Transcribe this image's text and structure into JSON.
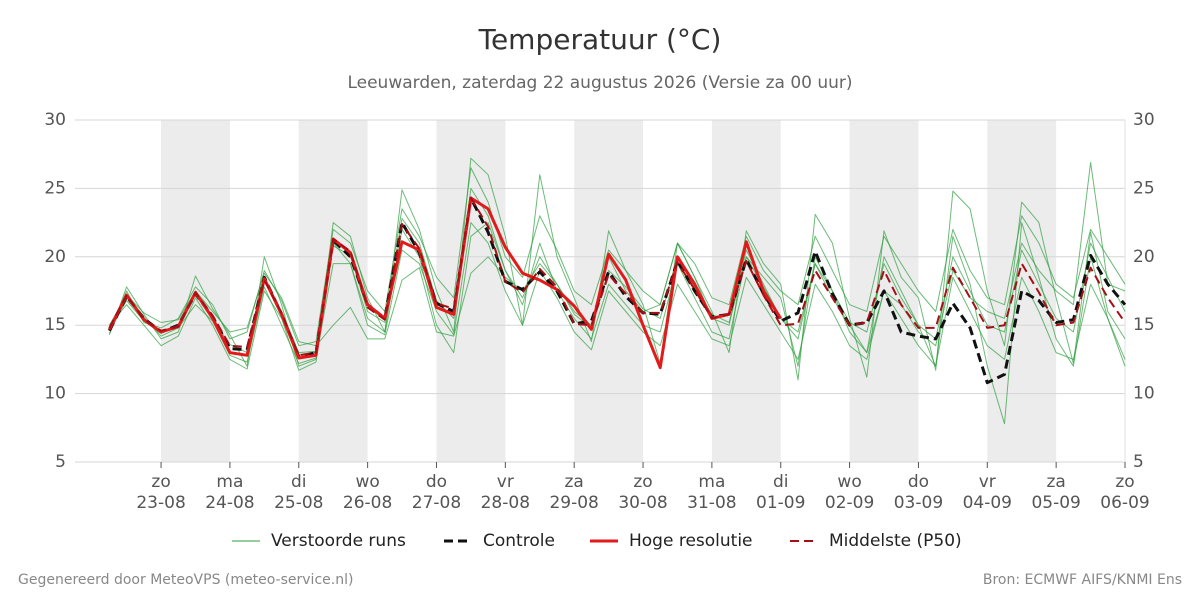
{
  "chart_data": {
    "type": "line",
    "title": "Temperatuur (°C)",
    "subtitle": "Leeuwarden, zaterdag 22 augustus 2026 (Versie za 00 uur)",
    "footer_left": "Gegenereerd door MeteoVPS (meteo-service.nl)",
    "footer_right": "Bron: ECMWF AIFS/KNMI Ens",
    "categories": [
      null,
      null,
      null,
      "23-08",
      null,
      null,
      null,
      "24-08",
      null,
      null,
      null,
      "25-08",
      null,
      null,
      null,
      "26-08",
      null,
      null,
      null,
      "27-08",
      null,
      null,
      null,
      "28-08",
      null,
      null,
      null,
      "29-08",
      null,
      null,
      null,
      "30-08",
      null,
      null,
      null,
      "31-08",
      null,
      null,
      null,
      "01-09",
      null,
      null,
      null,
      "02-09",
      null,
      null,
      null,
      "03-09",
      null,
      null,
      null,
      "04-09",
      null,
      null,
      null,
      "05-09",
      null,
      null,
      null,
      "06-09"
    ],
    "weekdays": [
      null,
      null,
      null,
      "zo",
      null,
      null,
      null,
      "ma",
      null,
      null,
      null,
      "di",
      null,
      null,
      null,
      "wo",
      null,
      null,
      null,
      "do",
      null,
      null,
      null,
      "vr",
      null,
      null,
      null,
      "za",
      null,
      null,
      null,
      "zo",
      null,
      null,
      null,
      "ma",
      null,
      null,
      null,
      "di",
      null,
      null,
      null,
      "wo",
      null,
      null,
      null,
      "do",
      null,
      null,
      null,
      "vr",
      null,
      null,
      null,
      "za",
      null,
      null,
      null,
      "zo"
    ],
    "ylim": [
      5,
      30
    ],
    "yticks": [
      5,
      10,
      15,
      20,
      25,
      30
    ],
    "grid": true,
    "right_axis": true,
    "ensemble": {
      "name": "Verstoorde runs",
      "color": "#2e9e3e",
      "runs": [
        [
          14.3,
          17.8,
          15.8,
          14.0,
          14.5,
          18.6,
          16.2,
          14.3,
          12.0,
          20.0,
          16.5,
          12.0,
          12.5,
          22.5,
          21.5,
          17.0,
          14.5,
          24.9,
          22.0,
          17.5,
          14.5,
          27.2,
          26.0,
          21.5,
          15.0,
          26.0,
          20.0,
          17.0,
          13.8,
          21.9,
          19.0,
          16.5,
          12.2,
          21.0,
          18.5,
          16.0,
          13.0,
          21.9,
          19.5,
          18.0,
          11.0,
          23.1,
          21.0,
          15.5,
          11.2,
          21.9,
          18.5,
          17.0,
          11.7,
          24.8,
          23.5,
          17.5,
          13.5,
          24.0,
          22.5,
          17.0,
          12.2,
          21.8,
          16.0,
          14.0
        ],
        [
          15.0,
          16.5,
          15.0,
          13.5,
          14.2,
          17.0,
          15.0,
          12.5,
          11.8,
          17.5,
          15.5,
          11.7,
          12.3,
          21.0,
          19.5,
          15.5,
          14.5,
          22.0,
          20.0,
          15.0,
          13.0,
          21.5,
          22.5,
          19.0,
          16.5,
          21.0,
          17.5,
          15.5,
          14.0,
          18.0,
          16.5,
          15.0,
          14.5,
          19.5,
          17.0,
          14.5,
          14.0,
          20.0,
          18.5,
          17.0,
          12.0,
          20.0,
          17.5,
          14.5,
          13.0,
          20.0,
          17.5,
          15.0,
          12.0,
          21.5,
          18.0,
          12.0,
          7.8,
          22.5,
          18.5,
          14.0,
          12.0,
          20.0,
          15.5,
          12.0
        ],
        [
          14.6,
          17.5,
          15.2,
          14.8,
          15.5,
          17.8,
          16.5,
          14.0,
          14.5,
          19.0,
          16.8,
          13.5,
          13.8,
          22.0,
          21.0,
          17.5,
          16.0,
          23.5,
          21.5,
          18.5,
          17.0,
          26.5,
          24.0,
          20.0,
          18.5,
          23.0,
          20.5,
          17.5,
          16.5,
          20.5,
          19.0,
          17.5,
          16.5,
          21.0,
          19.5,
          17.0,
          16.5,
          21.5,
          19.0,
          17.5,
          16.5,
          21.5,
          19.0,
          16.5,
          16.0,
          21.5,
          19.5,
          17.5,
          16.0,
          22.0,
          19.0,
          17.0,
          16.5,
          23.0,
          21.0,
          18.0,
          17.0,
          22.0,
          20.0,
          18.0
        ],
        [
          14.4,
          17.0,
          15.6,
          14.2,
          14.8,
          16.5,
          15.3,
          12.8,
          12.3,
          17.8,
          15.0,
          12.2,
          12.6,
          19.5,
          19.5,
          15.0,
          14.3,
          20.5,
          19.5,
          16.0,
          14.3,
          22.5,
          21.0,
          17.5,
          15.0,
          19.0,
          17.0,
          14.5,
          13.2,
          17.5,
          16.0,
          14.5,
          13.5,
          18.0,
          16.0,
          14.0,
          13.5,
          18.5,
          16.5,
          14.5,
          12.5,
          18.0,
          16.0,
          13.5,
          12.5,
          17.5,
          15.5,
          13.5,
          12.0,
          18.5,
          16.0,
          13.5,
          12.5,
          18.5,
          16.0,
          13.0,
          12.5,
          18.0,
          15.5,
          12.5
        ],
        [
          15.0,
          17.2,
          15.9,
          15.2,
          15.4,
          17.5,
          16.0,
          14.5,
          14.8,
          18.8,
          17.0,
          13.8,
          13.5,
          15.0,
          16.3,
          14.0,
          14.0,
          18.3,
          19.2,
          14.5,
          14.2,
          18.8,
          20.0,
          18.5,
          17.5,
          19.5,
          18.0,
          16.0,
          15.0,
          20.0,
          17.5,
          16.0,
          16.5,
          21.0,
          18.5,
          15.5,
          15.0,
          20.5,
          18.0,
          15.5,
          14.0,
          19.5,
          17.0,
          15.0,
          13.0,
          17.5,
          16.5,
          14.5,
          13.5,
          19.0,
          17.0,
          16.0,
          15.5,
          21.0,
          19.0,
          17.5,
          16.5,
          26.9,
          18.0,
          17.5
        ],
        [
          14.7,
          16.8,
          15.3,
          14.4,
          15.0,
          17.3,
          15.4,
          13.6,
          13.0,
          18.2,
          16.0,
          13.0,
          13.1,
          20.8,
          20.1,
          16.0,
          15.2,
          22.8,
          21.0,
          16.8,
          15.5,
          25.0,
          23.0,
          19.0,
          17.0,
          20.0,
          18.0,
          15.8,
          14.8,
          19.0,
          17.8,
          16.2,
          15.5,
          20.0,
          17.8,
          15.8,
          15.2,
          20.0,
          17.8,
          15.5,
          14.5,
          19.5,
          17.5,
          15.2,
          14.5,
          19.5,
          17.0,
          15.0,
          14.0,
          20.0,
          17.5,
          15.0,
          14.5,
          20.5,
          18.0,
          15.5,
          14.5,
          21.0,
          18.5,
          16.0
        ]
      ]
    },
    "series": [
      {
        "name": "Controle",
        "color": "#111111",
        "dashed": true,
        "width": 3,
        "values": [
          14.6,
          17.1,
          15.5,
          14.5,
          15.0,
          17.3,
          15.6,
          13.3,
          13.2,
          18.5,
          15.8,
          12.7,
          13.0,
          21.2,
          20.0,
          16.5,
          15.5,
          22.5,
          20.3,
          16.6,
          16.0,
          24.3,
          21.8,
          18.2,
          17.6,
          18.9,
          17.5,
          15.1,
          15.3,
          18.9,
          17.1,
          15.9,
          15.8,
          19.7,
          17.5,
          15.6,
          15.8,
          19.8,
          17.3,
          15.3,
          15.9,
          20.4,
          17.3,
          15.0,
          15.2,
          17.5,
          14.5,
          14.2,
          14.0,
          16.6,
          14.8,
          10.8,
          11.4,
          17.5,
          16.8,
          15.2,
          15.4,
          20.1,
          18.0,
          16.5
        ]
      },
      {
        "name": "Hoge resolutie",
        "color": "#e31a1c",
        "dashed": false,
        "width": 3,
        "values": [
          14.7,
          17.2,
          15.4,
          14.5,
          14.9,
          17.4,
          15.5,
          13.0,
          12.8,
          18.4,
          15.8,
          12.6,
          12.8,
          21.3,
          20.3,
          16.5,
          15.5,
          21.1,
          20.5,
          16.3,
          15.8,
          24.3,
          23.5,
          20.7,
          18.8,
          18.3,
          17.6,
          16.4,
          14.7,
          20.2,
          18.3,
          15.0,
          11.9,
          20.0,
          18.0,
          15.5,
          15.8,
          21.1,
          17.5,
          15.5,
          null,
          null,
          null,
          null,
          null,
          null,
          null,
          null,
          null,
          null,
          null,
          null,
          null,
          null,
          null,
          null,
          null,
          null,
          null,
          null
        ]
      },
      {
        "name": "Middelste (P50)",
        "color": "#a50f15",
        "dashed": true,
        "width": 2,
        "values": [
          14.8,
          17.2,
          15.4,
          14.6,
          14.9,
          17.4,
          15.7,
          13.5,
          13.4,
          18.3,
          15.9,
          12.8,
          13.0,
          21.3,
          20.4,
          16.3,
          15.4,
          22.4,
          20.6,
          16.6,
          16.2,
          24.3,
          22.2,
          18.2,
          17.4,
          19.1,
          17.8,
          15.1,
          15.0,
          18.7,
          17.3,
          15.9,
          15.9,
          19.6,
          17.6,
          15.5,
          15.8,
          19.7,
          17.2,
          15.0,
          15.1,
          19.0,
          17.0,
          15.0,
          15.2,
          19.0,
          16.5,
          14.8,
          14.8,
          19.2,
          17.0,
          14.8,
          15.0,
          19.5,
          17.4,
          15.0,
          15.2,
          19.2,
          17.0,
          15.2
        ]
      }
    ]
  }
}
